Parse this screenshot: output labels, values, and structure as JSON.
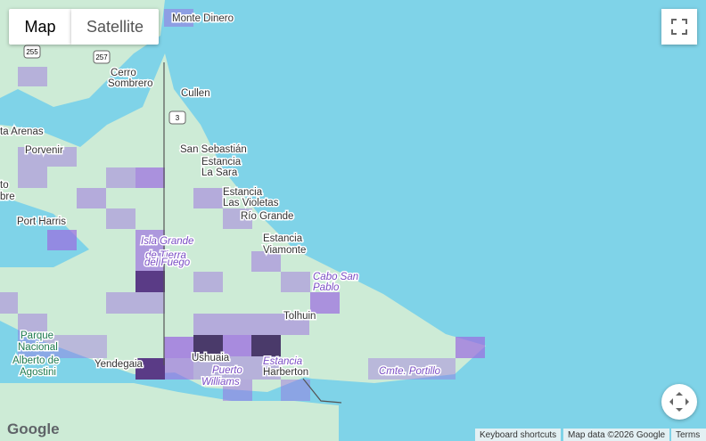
{
  "controls": {
    "map": "Map",
    "satellite": "Satellite"
  },
  "places": [
    "Monte Dinero",
    "Cerro",
    "Sombrero",
    "Cullen",
    "ta Arenas",
    "Porvenir",
    "San Sebastián",
    "Estancia",
    "La Sara",
    "to",
    "bre",
    "Estancia",
    "Las Violetas",
    "Río Grande",
    "Port Harris",
    "Isla Grande",
    "de Tierra",
    "del Fuego",
    "Estancia",
    "Viamonte",
    "Cabo San",
    "Pablo",
    "Tolhuin",
    "Parque",
    "Nacional",
    "Alberto de",
    "Agostini",
    "Yendegaia",
    "Ushuaia",
    "Puerto",
    "Williams",
    "Estancia",
    "Harberton",
    "Cmte. Portillo"
  ],
  "roads": [
    "255",
    "257",
    "3"
  ],
  "footer": {
    "logo": "Google",
    "shortcuts": "Keyboard shortcuts",
    "mapdata": "Map data ©2026 Google",
    "terms": "Terms"
  }
}
